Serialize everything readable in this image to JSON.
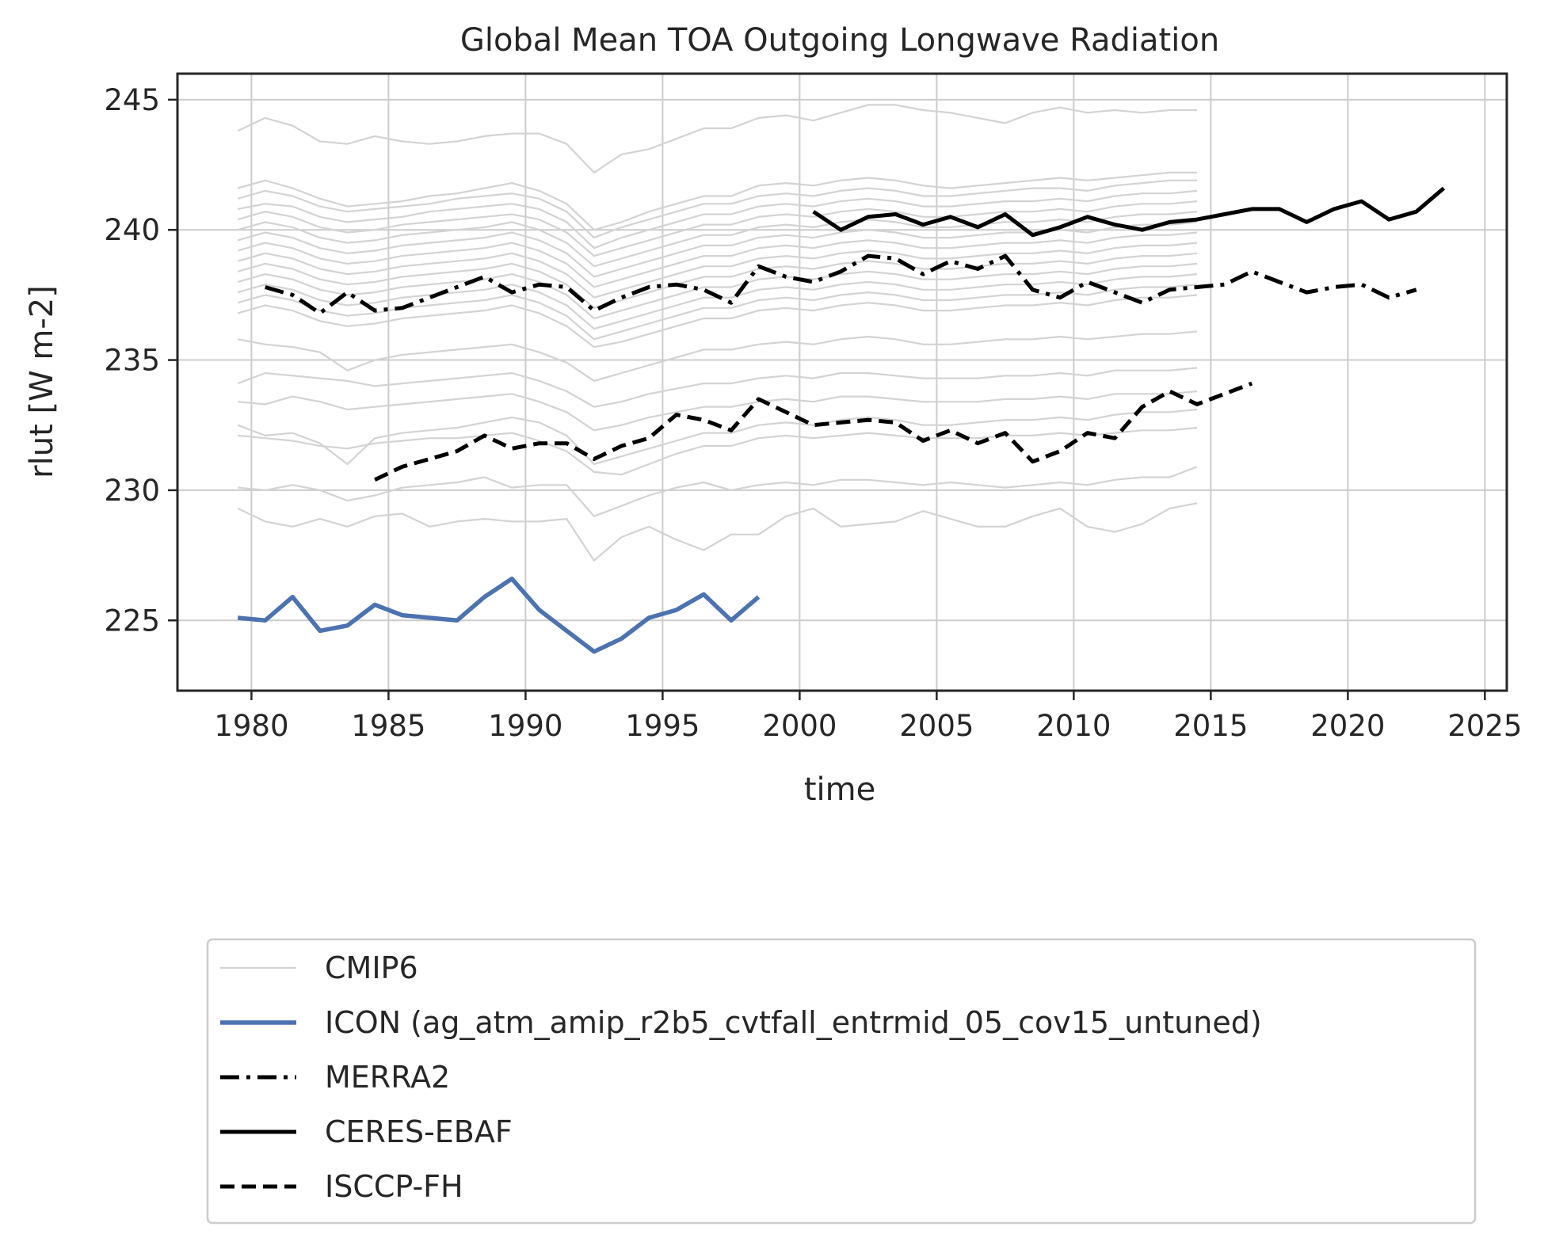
{
  "chart_data": {
    "type": "line",
    "title": "Global Mean TOA Outgoing Longwave Radiation",
    "xlabel": "time",
    "ylabel": "rlut [W m-2]",
    "xlim": [
      1977.3,
      2025.8
    ],
    "ylim": [
      222.3,
      246.0
    ],
    "xticks": [
      1980,
      1985,
      1990,
      1995,
      2000,
      2005,
      2010,
      2015,
      2020,
      2025
    ],
    "yticks": [
      225,
      230,
      235,
      240,
      245
    ],
    "grid": true,
    "legend_position": "below",
    "colors": {
      "cmip6": "#d3d3d3",
      "icon": "#4c72b0",
      "obs": "#000000"
    },
    "cmip6": {
      "name": "CMIP6",
      "years": [
        1979.5,
        1980.5,
        1981.5,
        1982.5,
        1983.5,
        1984.5,
        1985.5,
        1986.5,
        1987.5,
        1988.5,
        1989.5,
        1990.5,
        1991.5,
        1992.5,
        1993.5,
        1994.5,
        1995.5,
        1996.5,
        1997.5,
        1998.5,
        1999.5,
        2000.5,
        2001.5,
        2002.5,
        2003.5,
        2004.5,
        2005.5,
        2006.5,
        2007.5,
        2008.5,
        2009.5,
        2010.5,
        2011.5,
        2012.5,
        2013.5,
        2014.5
      ],
      "members": [
        [
          243.8,
          244.3,
          244.0,
          243.4,
          243.3,
          243.6,
          243.4,
          243.3,
          243.4,
          243.6,
          243.7,
          243.7,
          243.3,
          242.2,
          242.9,
          243.1,
          243.5,
          243.9,
          243.9,
          244.3,
          244.4,
          244.2,
          244.5,
          244.8,
          244.8,
          244.6,
          244.5,
          244.3,
          244.1,
          244.5,
          244.7,
          244.5,
          244.6,
          244.5,
          244.6,
          244.6
        ],
        [
          241.6,
          241.9,
          241.6,
          241.2,
          240.9,
          241.0,
          241.1,
          241.3,
          241.4,
          241.6,
          241.8,
          241.5,
          241.0,
          240.0,
          240.3,
          240.7,
          241.0,
          241.3,
          241.3,
          241.7,
          241.8,
          241.7,
          241.9,
          242.0,
          241.9,
          241.7,
          241.6,
          241.7,
          241.8,
          241.9,
          242.0,
          241.9,
          242.0,
          242.1,
          242.2,
          242.2
        ],
        [
          241.2,
          241.5,
          241.3,
          240.9,
          240.7,
          240.8,
          240.9,
          241.0,
          241.2,
          241.3,
          241.4,
          241.2,
          240.7,
          239.7,
          240.1,
          240.4,
          240.7,
          241.0,
          241.0,
          241.3,
          241.4,
          241.3,
          241.5,
          241.6,
          241.5,
          241.3,
          241.3,
          241.4,
          241.5,
          241.6,
          241.6,
          241.5,
          241.7,
          241.8,
          241.9,
          241.9
        ],
        [
          240.8,
          241.0,
          240.9,
          240.5,
          240.3,
          240.4,
          240.5,
          240.7,
          240.8,
          240.9,
          241.0,
          240.8,
          240.3,
          239.3,
          239.7,
          240.0,
          240.3,
          240.6,
          240.6,
          240.9,
          241.0,
          240.9,
          241.1,
          241.2,
          241.1,
          240.9,
          240.9,
          241.0,
          241.1,
          241.1,
          241.2,
          241.1,
          241.3,
          241.4,
          241.4,
          241.5
        ],
        [
          240.4,
          240.7,
          240.5,
          240.1,
          239.9,
          240.0,
          240.2,
          240.3,
          240.4,
          240.5,
          240.6,
          240.4,
          239.9,
          239.0,
          239.3,
          239.6,
          239.9,
          240.2,
          240.2,
          240.5,
          240.6,
          240.5,
          240.7,
          240.8,
          240.7,
          240.5,
          240.5,
          240.6,
          240.7,
          240.7,
          240.8,
          240.7,
          240.9,
          241.0,
          241.0,
          241.1
        ],
        [
          240.0,
          240.3,
          240.1,
          239.7,
          239.5,
          239.6,
          239.8,
          239.9,
          240.0,
          240.1,
          240.3,
          240.0,
          239.5,
          238.6,
          238.9,
          239.2,
          239.5,
          239.8,
          239.8,
          240.1,
          240.2,
          240.1,
          240.3,
          240.4,
          240.3,
          240.1,
          240.1,
          240.2,
          240.3,
          240.3,
          240.4,
          240.3,
          240.5,
          240.6,
          240.6,
          240.7
        ],
        [
          239.6,
          239.9,
          239.7,
          239.3,
          239.1,
          239.2,
          239.4,
          239.5,
          239.6,
          239.7,
          239.9,
          239.6,
          239.1,
          238.2,
          238.5,
          238.8,
          239.1,
          239.4,
          239.4,
          239.7,
          239.8,
          239.7,
          239.9,
          240.0,
          239.9,
          239.7,
          239.7,
          239.8,
          239.9,
          239.9,
          240.0,
          239.9,
          240.1,
          240.2,
          240.2,
          240.3
        ],
        [
          239.2,
          239.5,
          239.3,
          238.9,
          238.7,
          238.8,
          239.0,
          239.1,
          239.2,
          239.3,
          239.5,
          239.2,
          238.7,
          237.8,
          238.1,
          238.4,
          238.7,
          239.0,
          239.0,
          239.3,
          239.4,
          239.3,
          239.5,
          239.6,
          239.5,
          239.3,
          239.3,
          239.4,
          239.5,
          239.5,
          239.6,
          239.5,
          239.7,
          239.8,
          239.8,
          239.9
        ],
        [
          238.8,
          239.1,
          238.9,
          238.5,
          238.3,
          238.4,
          238.6,
          238.7,
          238.8,
          238.9,
          239.1,
          238.8,
          238.3,
          237.4,
          237.7,
          238.0,
          238.3,
          238.6,
          238.6,
          238.9,
          239.0,
          238.9,
          239.1,
          239.2,
          239.1,
          238.9,
          238.9,
          239.0,
          239.1,
          239.1,
          239.2,
          239.1,
          239.3,
          239.4,
          239.4,
          239.5
        ],
        [
          238.4,
          238.7,
          238.5,
          238.1,
          237.9,
          238.0,
          238.2,
          238.3,
          238.4,
          238.5,
          238.7,
          238.4,
          237.9,
          237.0,
          237.3,
          237.6,
          237.9,
          238.2,
          238.2,
          238.5,
          238.6,
          238.5,
          238.7,
          238.8,
          238.7,
          238.5,
          238.5,
          238.6,
          238.7,
          238.7,
          238.8,
          238.7,
          238.9,
          239.0,
          239.0,
          239.1
        ],
        [
          238.0,
          238.3,
          238.1,
          237.7,
          237.5,
          237.6,
          237.8,
          237.9,
          238.0,
          238.1,
          238.3,
          238.0,
          237.5,
          236.6,
          236.9,
          237.2,
          237.5,
          237.8,
          237.8,
          238.1,
          238.2,
          238.1,
          238.3,
          238.4,
          238.3,
          238.1,
          238.1,
          238.2,
          238.3,
          238.3,
          238.4,
          238.3,
          238.5,
          238.6,
          238.6,
          238.7
        ],
        [
          237.6,
          237.9,
          237.7,
          237.3,
          237.1,
          237.2,
          237.4,
          237.5,
          237.6,
          237.7,
          237.9,
          237.6,
          237.1,
          236.2,
          236.5,
          236.8,
          237.1,
          237.4,
          237.4,
          237.7,
          237.8,
          237.7,
          237.9,
          238.0,
          237.9,
          237.7,
          237.7,
          237.8,
          237.9,
          237.9,
          238.0,
          237.9,
          238.1,
          238.2,
          238.2,
          238.3
        ],
        [
          237.2,
          237.5,
          237.3,
          236.9,
          236.7,
          236.8,
          237.0,
          237.1,
          237.2,
          237.3,
          237.5,
          237.2,
          236.7,
          235.8,
          236.1,
          236.4,
          236.7,
          237.0,
          237.0,
          237.3,
          237.4,
          237.3,
          237.5,
          237.6,
          237.5,
          237.3,
          237.3,
          237.4,
          237.5,
          237.5,
          237.6,
          237.5,
          237.7,
          237.8,
          237.8,
          237.9
        ],
        [
          236.8,
          237.1,
          236.9,
          236.5,
          236.3,
          236.4,
          236.6,
          236.7,
          236.8,
          236.9,
          237.1,
          236.8,
          236.3,
          235.5,
          235.7,
          236.0,
          236.3,
          236.6,
          236.6,
          236.9,
          237.0,
          236.9,
          237.1,
          237.2,
          237.1,
          236.9,
          236.9,
          237.0,
          237.1,
          237.1,
          237.2,
          237.1,
          237.3,
          237.4,
          237.4,
          237.5
        ],
        [
          235.8,
          235.6,
          235.5,
          235.3,
          234.6,
          235.0,
          235.2,
          235.3,
          235.4,
          235.5,
          235.6,
          235.3,
          234.9,
          234.2,
          234.5,
          234.8,
          235.1,
          235.4,
          235.4,
          235.6,
          235.7,
          235.6,
          235.8,
          235.9,
          235.8,
          235.6,
          235.6,
          235.7,
          235.8,
          235.8,
          235.9,
          235.8,
          235.9,
          236.0,
          236.0,
          236.1
        ],
        [
          234.1,
          234.5,
          234.4,
          234.3,
          234.2,
          234.0,
          234.1,
          234.2,
          234.3,
          234.4,
          234.5,
          234.2,
          233.8,
          233.2,
          233.4,
          233.7,
          233.9,
          234.1,
          234.1,
          234.3,
          234.4,
          234.3,
          234.5,
          234.5,
          234.4,
          234.3,
          234.3,
          234.3,
          234.4,
          234.4,
          234.5,
          234.4,
          234.6,
          234.6,
          234.6,
          234.7
        ],
        [
          233.4,
          233.3,
          233.6,
          233.4,
          233.1,
          233.2,
          233.3,
          233.4,
          233.5,
          233.6,
          233.7,
          233.4,
          233.0,
          232.3,
          232.5,
          232.8,
          233.0,
          233.2,
          233.2,
          233.4,
          233.5,
          233.4,
          233.6,
          233.6,
          233.5,
          233.4,
          233.4,
          233.4,
          233.5,
          233.5,
          233.6,
          233.5,
          233.7,
          233.7,
          233.7,
          233.8
        ],
        [
          232.5,
          232.1,
          232.2,
          231.8,
          231.0,
          232.0,
          232.2,
          232.3,
          232.4,
          232.6,
          232.8,
          232.6,
          232.1,
          231.0,
          231.3,
          231.6,
          231.9,
          232.2,
          232.2,
          232.5,
          232.6,
          232.5,
          232.7,
          232.8,
          232.7,
          232.5,
          232.5,
          232.6,
          232.7,
          232.7,
          232.8,
          232.7,
          232.9,
          233.0,
          233.0,
          233.1
        ],
        [
          232.1,
          232.0,
          231.9,
          231.7,
          231.6,
          231.8,
          231.9,
          232.0,
          232.0,
          232.1,
          232.2,
          231.9,
          231.5,
          230.7,
          230.6,
          231.0,
          231.4,
          231.7,
          231.7,
          232.0,
          232.1,
          232.0,
          232.1,
          232.2,
          232.1,
          232.0,
          232.0,
          232.0,
          232.1,
          232.1,
          232.2,
          232.1,
          232.2,
          232.3,
          232.3,
          232.4
        ],
        [
          230.1,
          230.0,
          230.2,
          230.0,
          229.6,
          229.8,
          230.1,
          230.2,
          230.3,
          230.5,
          230.1,
          230.2,
          230.2,
          229.0,
          229.4,
          229.8,
          230.1,
          230.3,
          230.0,
          230.2,
          230.3,
          230.2,
          230.4,
          230.4,
          230.3,
          230.2,
          230.3,
          230.2,
          230.1,
          230.2,
          230.3,
          230.2,
          230.4,
          230.5,
          230.5,
          230.9
        ],
        [
          229.3,
          228.8,
          228.6,
          228.9,
          228.6,
          229.0,
          229.1,
          228.6,
          228.8,
          228.9,
          228.8,
          228.8,
          228.9,
          227.3,
          228.2,
          228.6,
          228.1,
          227.7,
          228.3,
          228.3,
          229.0,
          229.3,
          228.6,
          228.7,
          228.8,
          229.2,
          228.9,
          228.6,
          228.6,
          229.0,
          229.3,
          228.6,
          228.4,
          228.7,
          229.3,
          229.5
        ]
      ]
    },
    "series": [
      {
        "name": "ICON (ag_atm_amip_r2b5_cvtfall_entrmid_05_cov15_untuned)",
        "style": "solid-blue",
        "x": [
          1979.5,
          1980.5,
          1981.5,
          1982.5,
          1983.5,
          1984.5,
          1985.5,
          1986.5,
          1987.5,
          1988.5,
          1989.5,
          1990.5,
          1991.5,
          1992.5,
          1993.5,
          1994.5,
          1995.5,
          1996.5,
          1997.5,
          1998.5
        ],
        "y": [
          225.1,
          225.0,
          225.9,
          224.6,
          224.8,
          225.6,
          225.2,
          225.1,
          225.0,
          225.9,
          226.6,
          225.4,
          224.6,
          223.8,
          224.3,
          225.1,
          225.4,
          226.0,
          225.0,
          225.9
        ]
      },
      {
        "name": "MERRA2",
        "style": "dashdot",
        "x": [
          1980.5,
          1981.5,
          1982.5,
          1983.5,
          1984.5,
          1985.5,
          1986.5,
          1987.5,
          1988.5,
          1989.5,
          1990.5,
          1991.5,
          1992.5,
          1993.5,
          1994.5,
          1995.5,
          1996.5,
          1997.5,
          1998.5,
          1999.5,
          2000.5,
          2001.5,
          2002.5,
          2003.5,
          2004.5,
          2005.5,
          2006.5,
          2007.5,
          2008.5,
          2009.5,
          2010.5,
          2011.5,
          2012.5,
          2013.5,
          2014.5,
          2015.5,
          2016.5,
          2017.5,
          2018.5,
          2019.5,
          2020.5,
          2021.5,
          2022.5
        ],
        "y": [
          237.8,
          237.5,
          236.8,
          237.6,
          236.9,
          237.0,
          237.4,
          237.8,
          238.2,
          237.6,
          237.9,
          237.8,
          236.9,
          237.4,
          237.8,
          237.9,
          237.7,
          237.2,
          238.6,
          238.2,
          238.0,
          238.4,
          239.0,
          238.9,
          238.3,
          238.8,
          238.5,
          239.0,
          237.7,
          237.4,
          238.0,
          237.6,
          237.2,
          237.7,
          237.8,
          237.9,
          238.4,
          238.0,
          237.6,
          237.8,
          237.9,
          237.4,
          237.7
        ]
      },
      {
        "name": "CERES-EBAF",
        "style": "solid",
        "x": [
          2000.5,
          2001.5,
          2002.5,
          2003.5,
          2004.5,
          2005.5,
          2006.5,
          2007.5,
          2008.5,
          2009.5,
          2010.5,
          2011.5,
          2012.5,
          2013.5,
          2014.5,
          2015.5,
          2016.5,
          2017.5,
          2018.5,
          2019.5,
          2020.5,
          2021.5,
          2022.5,
          2023.5
        ],
        "y": [
          240.7,
          240.0,
          240.5,
          240.6,
          240.2,
          240.5,
          240.1,
          240.6,
          239.8,
          240.1,
          240.5,
          240.2,
          240.0,
          240.3,
          240.4,
          240.6,
          240.8,
          240.8,
          240.3,
          240.8,
          241.1,
          240.4,
          240.7,
          241.6
        ]
      },
      {
        "name": "ISCCP-FH",
        "style": "dashed",
        "x": [
          1984.5,
          1985.5,
          1986.5,
          1987.5,
          1988.5,
          1989.5,
          1990.5,
          1991.5,
          1992.5,
          1993.5,
          1994.5,
          1995.5,
          1996.5,
          1997.5,
          1998.5,
          1999.5,
          2000.5,
          2001.5,
          2002.5,
          2003.5,
          2004.5,
          2005.5,
          2006.5,
          2007.5,
          2008.5,
          2009.5,
          2010.5,
          2011.5,
          2012.5,
          2013.5,
          2014.5,
          2015.5,
          2016.5
        ],
        "y": [
          230.4,
          230.9,
          231.2,
          231.5,
          232.1,
          231.6,
          231.8,
          231.8,
          231.2,
          231.7,
          232.0,
          232.9,
          232.7,
          232.3,
          233.5,
          233.0,
          232.5,
          232.6,
          232.7,
          232.6,
          231.9,
          232.3,
          231.8,
          232.2,
          231.1,
          231.5,
          232.2,
          232.0,
          233.2,
          233.8,
          233.3,
          233.7,
          234.1
        ]
      }
    ],
    "legend": [
      {
        "label": "CMIP6",
        "style": "cmip6"
      },
      {
        "label": "ICON (ag_atm_amip_r2b5_cvtfall_entrmid_05_cov15_untuned)",
        "style": "solid-blue"
      },
      {
        "label": "MERRA2",
        "style": "dashdot"
      },
      {
        "label": "CERES-EBAF",
        "style": "solid"
      },
      {
        "label": "ISCCP-FH",
        "style": "dashed"
      }
    ]
  }
}
